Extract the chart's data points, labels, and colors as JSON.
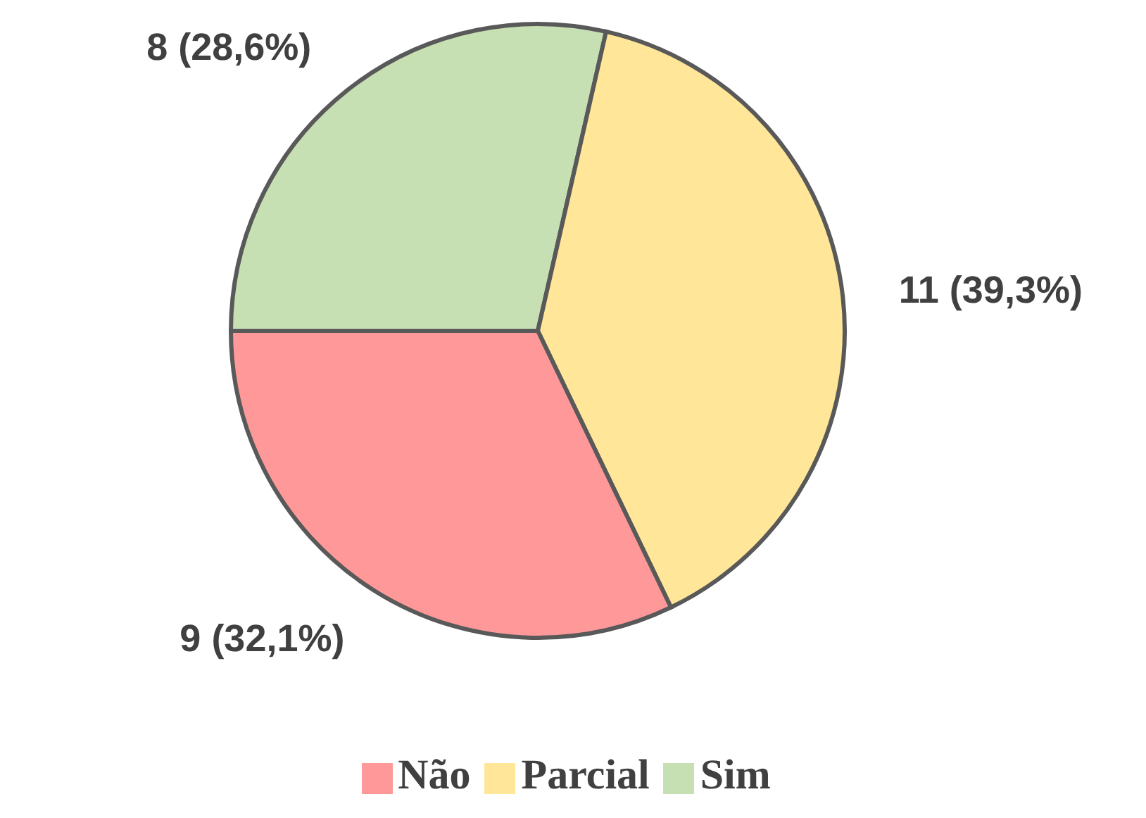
{
  "chart_data": {
    "type": "pie",
    "categories": [
      "Sim",
      "Parcial",
      "Não"
    ],
    "values": [
      8,
      11,
      9
    ],
    "colors": [
      "#c6e0b4",
      "#ffe699",
      "#ff9999"
    ],
    "value_labels": [
      "8 (28,6%)",
      "11 (39,3%)",
      "9 (32,1%)"
    ],
    "legend": "bottom"
  }
}
